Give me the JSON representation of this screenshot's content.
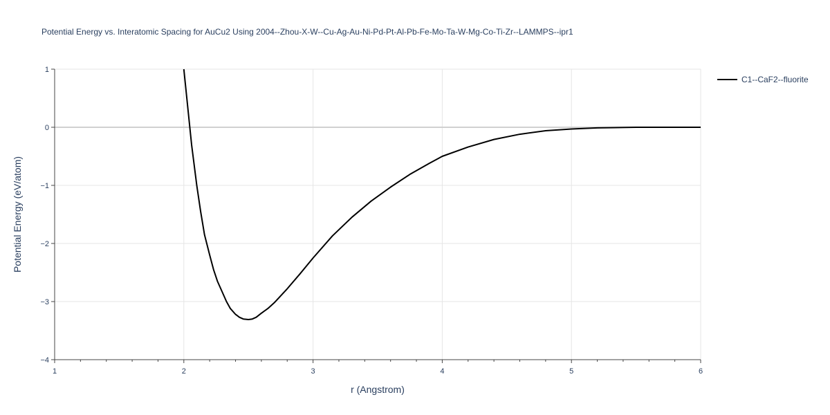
{
  "chart_data": {
    "type": "line",
    "title": "Potential Energy vs. Interatomic Spacing for AuCu2 Using 2004--Zhou-X-W--Cu-Ag-Au-Ni-Pd-Pt-Al-Pb-Fe-Mo-Ta-W-Mg-Co-Ti-Zr--LAMMPS--ipr1",
    "xlabel": "r (Angstrom)",
    "ylabel": "Potential Energy (eV/atom)",
    "xlim": [
      1,
      6
    ],
    "ylim": [
      -4,
      1
    ],
    "x_ticks": [
      1,
      2,
      3,
      4,
      5,
      6
    ],
    "y_ticks": [
      1,
      0,
      -1,
      -2,
      -3,
      -4
    ],
    "x_tick_labels": [
      "1",
      "2",
      "3",
      "4",
      "5",
      "6"
    ],
    "y_tick_labels": [
      "1",
      "0",
      "−1",
      "−2",
      "−3",
      "−4"
    ],
    "grid": true,
    "legend_position": "top-right",
    "series": [
      {
        "name": "C1--CaF2--fluorite",
        "color": "#000000",
        "x": [
          2.0,
          2.03,
          2.06,
          2.1,
          2.13,
          2.16,
          2.2,
          2.23,
          2.26,
          2.3,
          2.33,
          2.36,
          2.4,
          2.43,
          2.46,
          2.5,
          2.53,
          2.56,
          2.6,
          2.65,
          2.7,
          2.8,
          2.9,
          3.0,
          3.15,
          3.3,
          3.45,
          3.6,
          3.75,
          3.9,
          4.0,
          4.2,
          4.4,
          4.6,
          4.8,
          5.0,
          5.2,
          5.5,
          6.0
        ],
        "y": [
          1.0,
          0.35,
          -0.3,
          -1.0,
          -1.45,
          -1.85,
          -2.2,
          -2.45,
          -2.65,
          -2.85,
          -3.0,
          -3.12,
          -3.22,
          -3.27,
          -3.3,
          -3.31,
          -3.3,
          -3.27,
          -3.2,
          -3.12,
          -3.02,
          -2.78,
          -2.52,
          -2.25,
          -1.87,
          -1.55,
          -1.27,
          -1.03,
          -0.81,
          -0.62,
          -0.5,
          -0.34,
          -0.21,
          -0.12,
          -0.06,
          -0.03,
          -0.01,
          0.0,
          0.0
        ]
      }
    ]
  }
}
